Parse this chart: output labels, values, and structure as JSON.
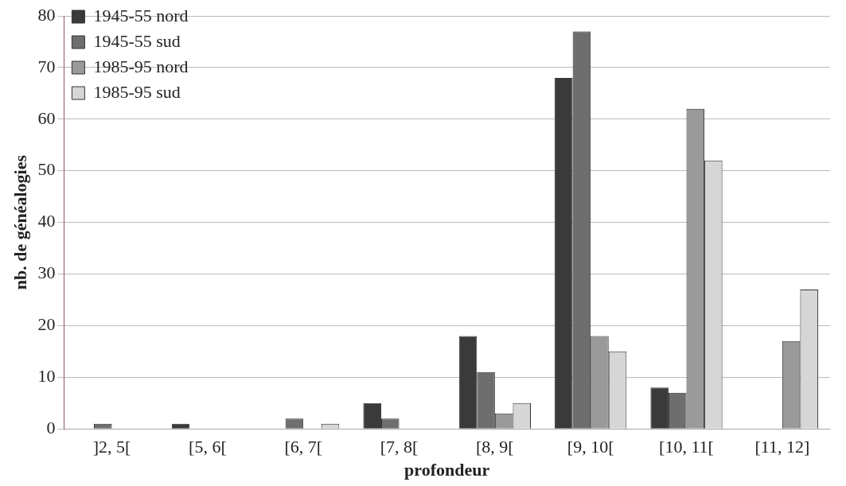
{
  "chart_data": {
    "type": "bar",
    "xlabel": "profondeur",
    "ylabel": "nb. de généalogies",
    "categories": [
      "]2, 5[",
      "[5, 6[",
      "[6, 7[",
      "[7, 8[",
      "[8, 9[",
      "[9, 10[",
      "[10, 11[",
      "[11, 12]"
    ],
    "series": [
      {
        "name": "1945-55 nord",
        "color": "#3a3a3a",
        "values": [
          0,
          1,
          0,
          5,
          18,
          68,
          8,
          0
        ]
      },
      {
        "name": "1945-55 sud",
        "color": "#6e6e6e",
        "values": [
          1,
          0,
          2,
          2,
          11,
          77,
          7,
          0
        ]
      },
      {
        "name": "1985-95 nord",
        "color": "#9a9a9a",
        "values": [
          0,
          0,
          0,
          0,
          3,
          18,
          62,
          17
        ]
      },
      {
        "name": "1985-95 sud",
        "color": "#d6d6d6",
        "values": [
          0,
          0,
          1,
          0,
          5,
          15,
          52,
          27
        ]
      }
    ],
    "ylim": [
      0,
      80
    ],
    "yticks": [
      0,
      10,
      20,
      30,
      40,
      50,
      60,
      70,
      80
    ],
    "grid": "y",
    "legend": "top left"
  }
}
